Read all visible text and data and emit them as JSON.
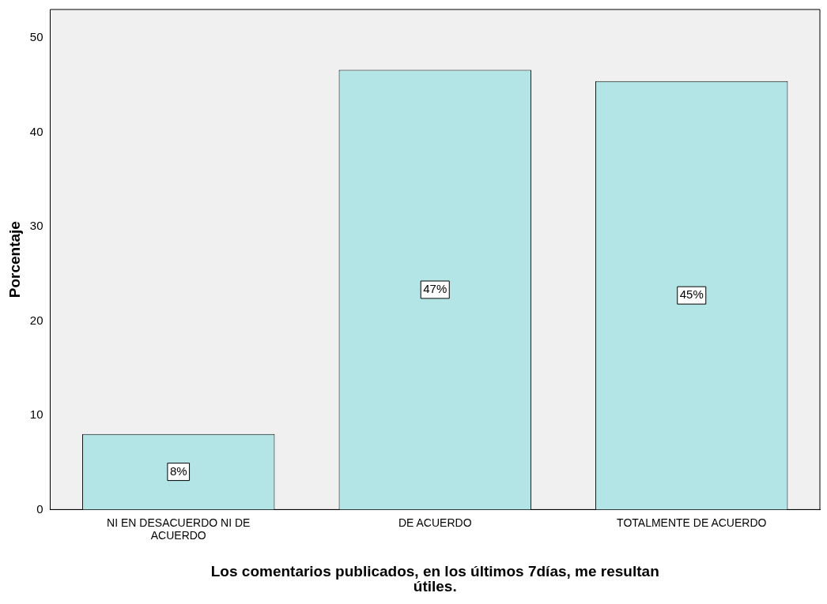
{
  "chart_data": {
    "type": "bar",
    "xlabel": "Los comentarios publicados, en los últimos 7días, me resultan útiles.",
    "ylabel": "Porcentaje",
    "categories": [
      "NI EN DESACUERDO NI DE ACUERDO",
      "DE ACUERDO",
      "TOTALMENTE DE ACUERDO"
    ],
    "values": [
      8,
      46.6,
      45.4
    ],
    "value_labels": [
      "8%",
      "47%",
      "45%"
    ],
    "color": "#b3e5e6",
    "ylim": [
      0,
      53
    ],
    "yticks": [
      0,
      10,
      20,
      30,
      40,
      50
    ],
    "grid": false,
    "legend": false
  }
}
